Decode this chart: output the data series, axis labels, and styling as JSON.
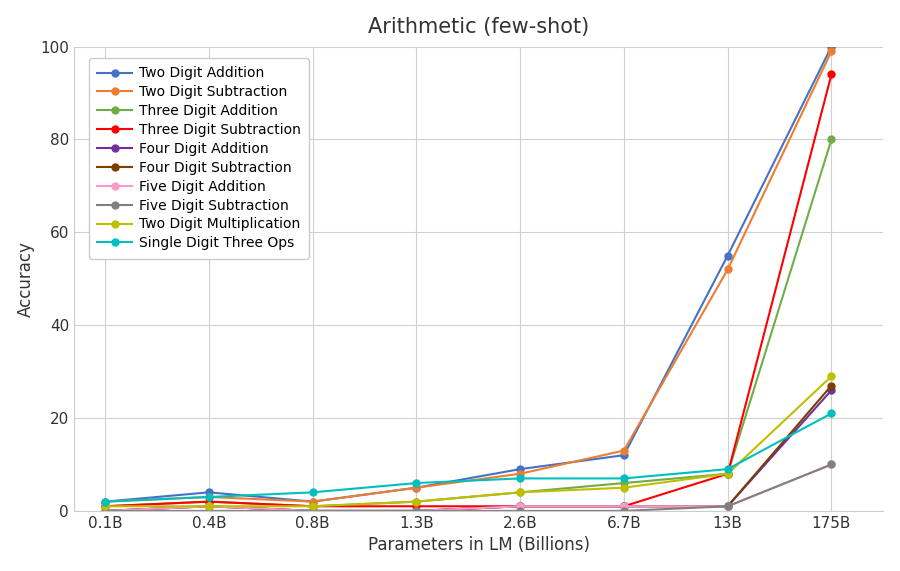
{
  "title": "Arithmetic (few-shot)",
  "xlabel": "Parameters in LM (Billions)",
  "ylabel": "Accuracy",
  "x_labels": [
    "0.1B",
    "0.4B",
    "0.8B",
    "1.3B",
    "2.6B",
    "6.7B",
    "13B",
    "175B"
  ],
  "ylim": [
    0,
    100
  ],
  "series": [
    {
      "label": "Two Digit Addition",
      "color": "#4472C4",
      "values": [
        2,
        4,
        2,
        5,
        9,
        12,
        55,
        100
      ]
    },
    {
      "label": "Two Digit Subtraction",
      "color": "#ED7D31",
      "values": [
        2,
        3,
        2,
        5,
        8,
        13,
        52,
        99
      ]
    },
    {
      "label": "Three Digit Addition",
      "color": "#70AD47",
      "values": [
        1,
        2,
        1,
        2,
        4,
        6,
        8,
        80
      ]
    },
    {
      "label": "Three Digit Subtraction",
      "color": "#FF0000",
      "values": [
        1,
        2,
        1,
        1,
        1,
        1,
        8,
        94
      ]
    },
    {
      "label": "Four Digit Addition",
      "color": "#7030A0",
      "values": [
        0,
        1,
        0,
        0,
        1,
        1,
        1,
        26
      ]
    },
    {
      "label": "Four Digit Subtraction",
      "color": "#7B3F00",
      "values": [
        0,
        1,
        0,
        0,
        1,
        1,
        1,
        27
      ]
    },
    {
      "label": "Five Digit Addition",
      "color": "#FF99CC",
      "values": [
        0,
        1,
        0,
        0,
        1,
        1,
        1,
        10
      ]
    },
    {
      "label": "Five Digit Subtraction",
      "color": "#808080",
      "values": [
        0,
        0,
        0,
        0,
        0,
        0,
        1,
        10
      ]
    },
    {
      "label": "Two Digit Multiplication",
      "color": "#BFBF00",
      "values": [
        1,
        1,
        1,
        2,
        4,
        5,
        8,
        29
      ]
    },
    {
      "label": "Single Digit Three Ops",
      "color": "#00BFBF",
      "values": [
        2,
        3,
        4,
        6,
        7,
        7,
        9,
        21
      ]
    }
  ],
  "background_color": "#ffffff",
  "grid_color": "#d0d0d0",
  "title_fontsize": 15,
  "label_fontsize": 12,
  "tick_fontsize": 11,
  "legend_fontsize": 10
}
